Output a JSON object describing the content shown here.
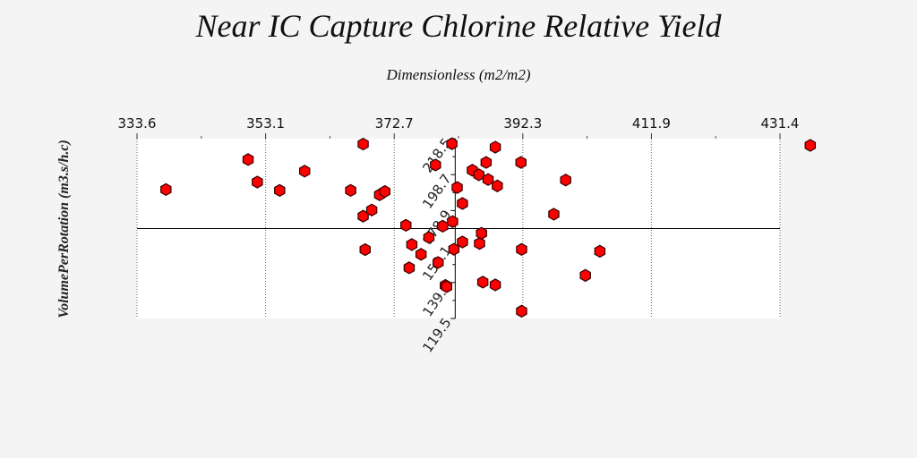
{
  "chart_data": {
    "type": "scatter",
    "title": "Near IC Capture Chlorine Relative Yield",
    "xlabel": "Dimensionless (m2/m2)",
    "ylabel": "VolumePerRotation (m3.s/h.c)",
    "xlim": [
      333.6,
      431.4
    ],
    "ylim": [
      119.5,
      218.5
    ],
    "x_ticks": [
      "333.6",
      "353.1",
      "372.7",
      "392.3",
      "411.9",
      "431.4"
    ],
    "y_ticks": [
      "119.5",
      "139.3",
      "159.1",
      "178.9",
      "198.7",
      "218.5"
    ],
    "x_axis_position": "top",
    "y_axis_crosses_x": 382.0,
    "x_axis_crosses_y": 169.0,
    "grid": {
      "vertical_dotted": true,
      "horizontal": false
    },
    "marker": {
      "shape": "hexagon",
      "fill": "#ff0000",
      "stroke": "#330000"
    },
    "points": [
      [
        338.0,
        190.5
      ],
      [
        350.5,
        207.0
      ],
      [
        351.9,
        194.6
      ],
      [
        355.3,
        190.0
      ],
      [
        359.1,
        200.6
      ],
      [
        366.1,
        190.0
      ],
      [
        368.0,
        215.5
      ],
      [
        368.0,
        175.8
      ],
      [
        368.3,
        157.4
      ],
      [
        369.3,
        179.2
      ],
      [
        370.5,
        187.6
      ],
      [
        371.3,
        189.4
      ],
      [
        374.5,
        170.8
      ],
      [
        375.0,
        147.4
      ],
      [
        375.4,
        160.2
      ],
      [
        376.8,
        154.8
      ],
      [
        378.0,
        164.1
      ],
      [
        379.0,
        204.0
      ],
      [
        379.4,
        150.3
      ],
      [
        380.5,
        137.7
      ],
      [
        380.7,
        137.0
      ],
      [
        381.5,
        215.7
      ],
      [
        381.8,
        157.6
      ],
      [
        382.3,
        191.6
      ],
      [
        383.1,
        182.8
      ],
      [
        383.1,
        161.6
      ],
      [
        380.1,
        170.3
      ],
      [
        381.6,
        172.8
      ],
      [
        384.6,
        201.1
      ],
      [
        385.6,
        198.6
      ],
      [
        385.7,
        160.8
      ],
      [
        386.0,
        166.4
      ],
      [
        386.2,
        139.5
      ],
      [
        386.7,
        205.4
      ],
      [
        387.0,
        196.0
      ],
      [
        388.1,
        213.8
      ],
      [
        388.4,
        192.5
      ],
      [
        388.1,
        138.0
      ],
      [
        392.0,
        205.4
      ],
      [
        392.1,
        157.5
      ],
      [
        392.1,
        123.5
      ],
      [
        397.0,
        176.9
      ],
      [
        398.8,
        195.7
      ],
      [
        401.8,
        143.2
      ],
      [
        404.0,
        156.5
      ],
      [
        436.0,
        214.8
      ]
    ]
  }
}
